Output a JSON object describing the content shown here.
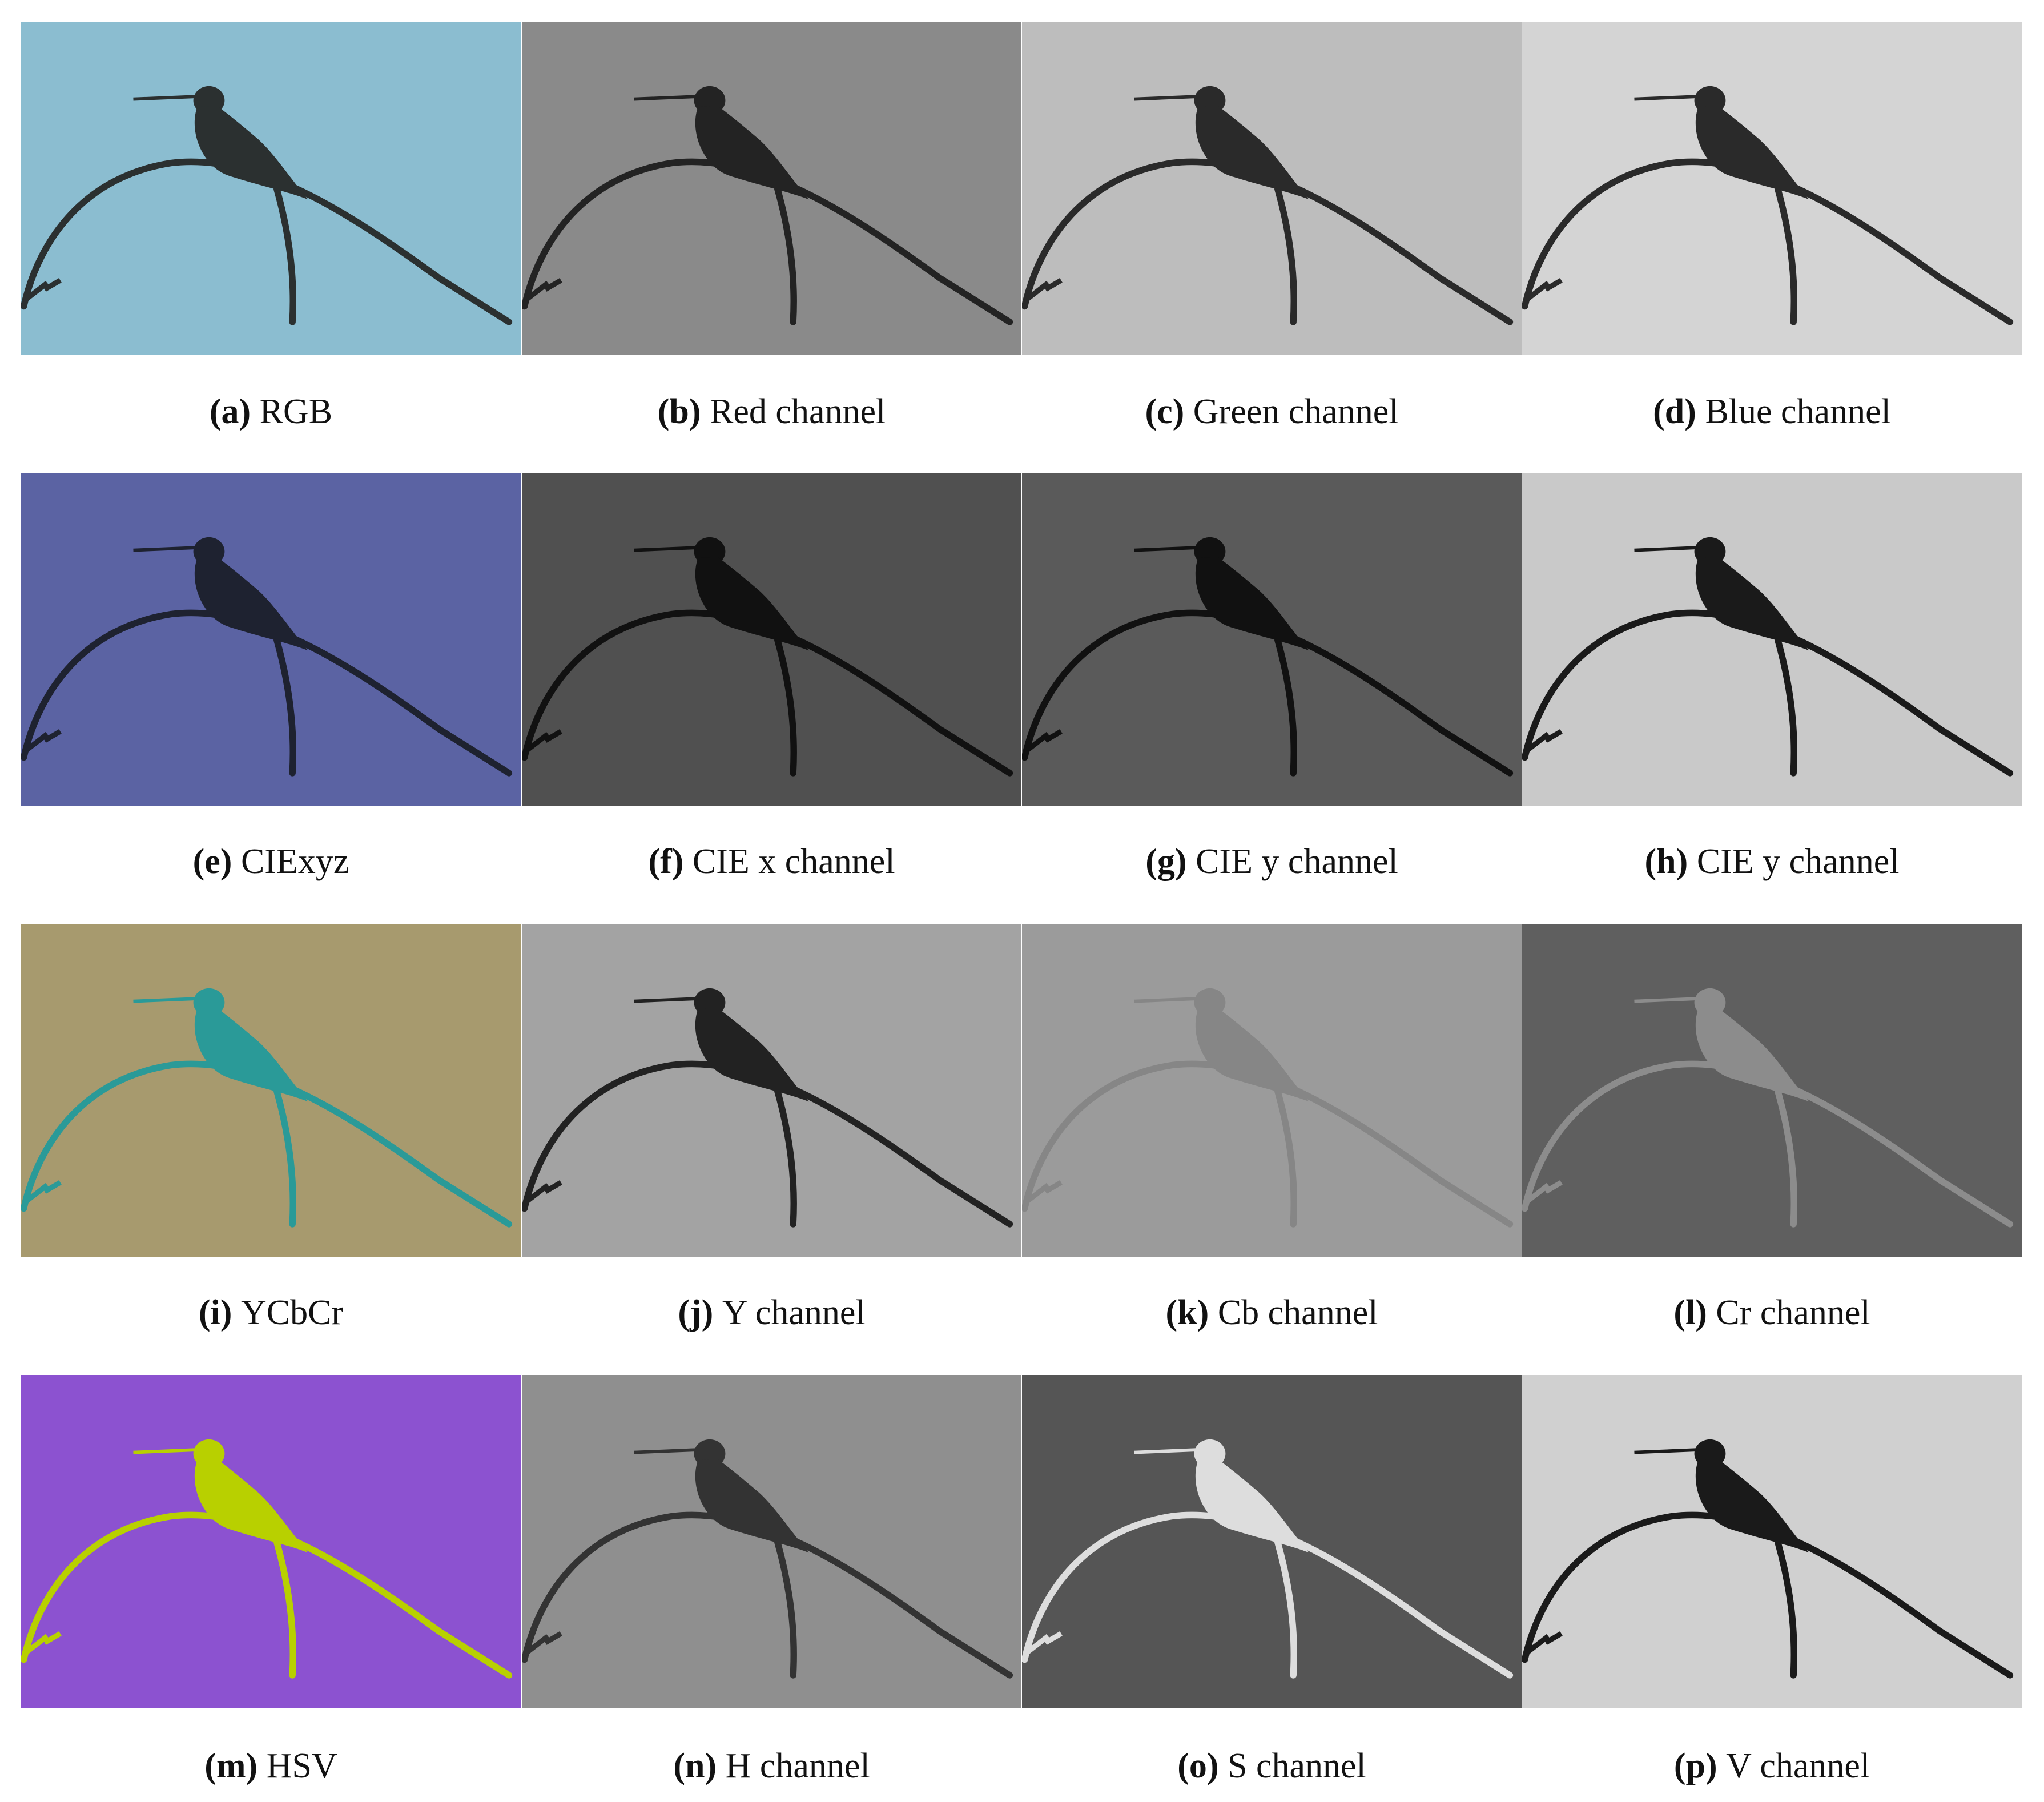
{
  "panels": [
    {
      "label": "(a)",
      "caption": "RGB"
    },
    {
      "label": "(b)",
      "caption": "Red channel"
    },
    {
      "label": "(c)",
      "caption": "Green channel"
    },
    {
      "label": "(d)",
      "caption": "Blue channel"
    },
    {
      "label": "(e)",
      "caption": "CIExyz"
    },
    {
      "label": "(f)",
      "caption": "CIE x channel"
    },
    {
      "label": "(g)",
      "caption": "CIE y channel"
    },
    {
      "label": "(h)",
      "caption": "CIE y channel"
    },
    {
      "label": "(i)",
      "caption": "YCbCr"
    },
    {
      "label": "(j)",
      "caption": "Y channel"
    },
    {
      "label": "(k)",
      "caption": "Cb channel"
    },
    {
      "label": "(l)",
      "caption": "Cr channel"
    },
    {
      "label": "(m)",
      "caption": "HSV"
    },
    {
      "label": "(n)",
      "caption": "H channel"
    },
    {
      "label": "(o)",
      "caption": "S channel"
    },
    {
      "label": "(p)",
      "caption": "V channel"
    }
  ]
}
